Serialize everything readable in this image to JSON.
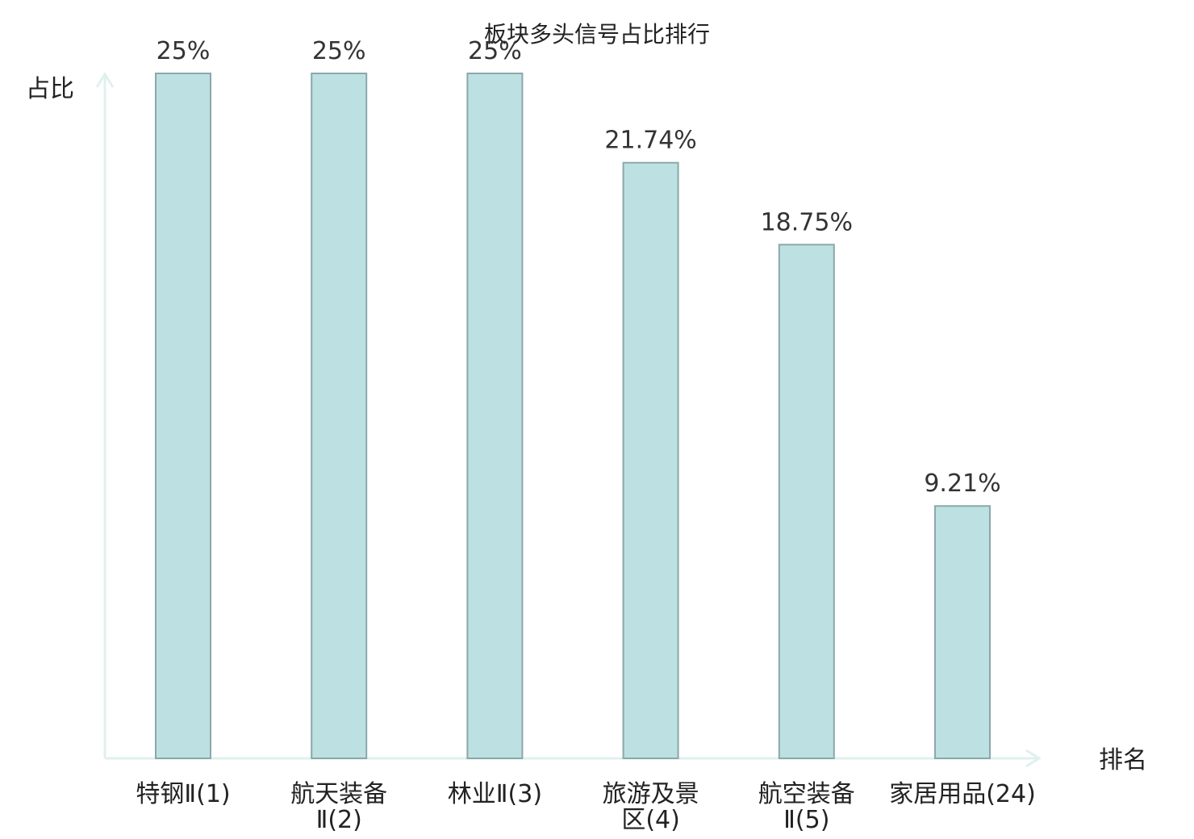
{
  "chart_data": {
    "type": "bar",
    "title": "板块多头信号占比排行",
    "ylabel": "占比",
    "xlabel": "排名",
    "ylim": [
      0,
      25
    ],
    "categories": [
      [
        "特钢Ⅱ(1)"
      ],
      [
        "航天装备",
        "Ⅱ(2)"
      ],
      [
        "林业Ⅱ(3)"
      ],
      [
        "旅游及景",
        "区(4)"
      ],
      [
        "航空装备",
        "Ⅱ(5)"
      ],
      [
        "家居用品(24)"
      ]
    ],
    "values": [
      25,
      25,
      25,
      21.74,
      18.75,
      9.21
    ],
    "value_labels": [
      "25%",
      "25%",
      "25%",
      "21.74%",
      "18.75%",
      "9.21%"
    ],
    "highlight_index": 5,
    "colors": {
      "bar_fill": "#bde0e3",
      "bar_stroke": "#8aa8aa",
      "axis": "#dff0ee",
      "highlight_label": "#e0201e",
      "label": "#222222"
    },
    "grid": false
  }
}
